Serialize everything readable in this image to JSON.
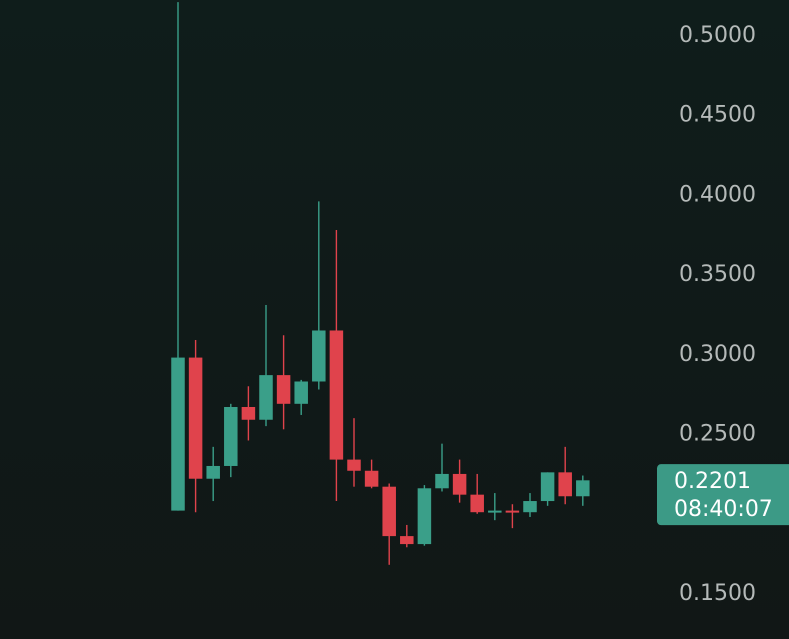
{
  "chart_data": {
    "type": "candlestick",
    "title": "",
    "xlabel": "",
    "ylabel": "",
    "ylim": [
      0.13,
      0.515
    ],
    "y_ticks": [
      {
        "value": 0.5,
        "label": "0.5000"
      },
      {
        "value": 0.45,
        "label": "0.4500"
      },
      {
        "value": 0.4,
        "label": "0.4000"
      },
      {
        "value": 0.35,
        "label": "0.3500"
      },
      {
        "value": 0.3,
        "label": "0.3000"
      },
      {
        "value": 0.25,
        "label": "0.2500"
      },
      {
        "value": 0.15,
        "label": "0.1500"
      }
    ],
    "candles": [
      {
        "open": 0.201,
        "high": 0.52,
        "low": 0.201,
        "close": 0.297
      },
      {
        "open": 0.297,
        "high": 0.308,
        "low": 0.2,
        "close": 0.221
      },
      {
        "open": 0.221,
        "high": 0.241,
        "low": 0.207,
        "close": 0.229
      },
      {
        "open": 0.229,
        "high": 0.268,
        "low": 0.222,
        "close": 0.266
      },
      {
        "open": 0.266,
        "high": 0.279,
        "low": 0.245,
        "close": 0.258
      },
      {
        "open": 0.258,
        "high": 0.33,
        "low": 0.254,
        "close": 0.286
      },
      {
        "open": 0.286,
        "high": 0.311,
        "low": 0.252,
        "close": 0.268
      },
      {
        "open": 0.268,
        "high": 0.283,
        "low": 0.261,
        "close": 0.282
      },
      {
        "open": 0.282,
        "high": 0.395,
        "low": 0.277,
        "close": 0.314
      },
      {
        "open": 0.314,
        "high": 0.377,
        "low": 0.207,
        "close": 0.233
      },
      {
        "open": 0.233,
        "high": 0.259,
        "low": 0.216,
        "close": 0.226
      },
      {
        "open": 0.226,
        "high": 0.233,
        "low": 0.215,
        "close": 0.216
      },
      {
        "open": 0.216,
        "high": 0.218,
        "low": 0.167,
        "close": 0.185
      },
      {
        "open": 0.185,
        "high": 0.192,
        "low": 0.178,
        "close": 0.18
      },
      {
        "open": 0.18,
        "high": 0.217,
        "low": 0.179,
        "close": 0.215
      },
      {
        "open": 0.215,
        "high": 0.243,
        "low": 0.213,
        "close": 0.224
      },
      {
        "open": 0.224,
        "high": 0.233,
        "low": 0.206,
        "close": 0.211
      },
      {
        "open": 0.211,
        "high": 0.224,
        "low": 0.199,
        "close": 0.2
      },
      {
        "open": 0.2,
        "high": 0.212,
        "low": 0.195,
        "close": 0.201
      },
      {
        "open": 0.201,
        "high": 0.205,
        "low": 0.19,
        "close": 0.2
      },
      {
        "open": 0.2,
        "high": 0.212,
        "low": 0.197,
        "close": 0.207
      },
      {
        "open": 0.207,
        "high": 0.225,
        "low": 0.204,
        "close": 0.225
      },
      {
        "open": 0.225,
        "high": 0.241,
        "low": 0.205,
        "close": 0.21
      },
      {
        "open": 0.21,
        "high": 0.223,
        "low": 0.204,
        "close": 0.22
      }
    ],
    "last_price": {
      "value": "0.2201",
      "countdown": "08:40:07"
    },
    "grid": false,
    "colors": {
      "up": "#3a9f89",
      "down": "#e0434c",
      "label_bg": "#3c9a86",
      "axis_text": "#b5bab9"
    }
  }
}
